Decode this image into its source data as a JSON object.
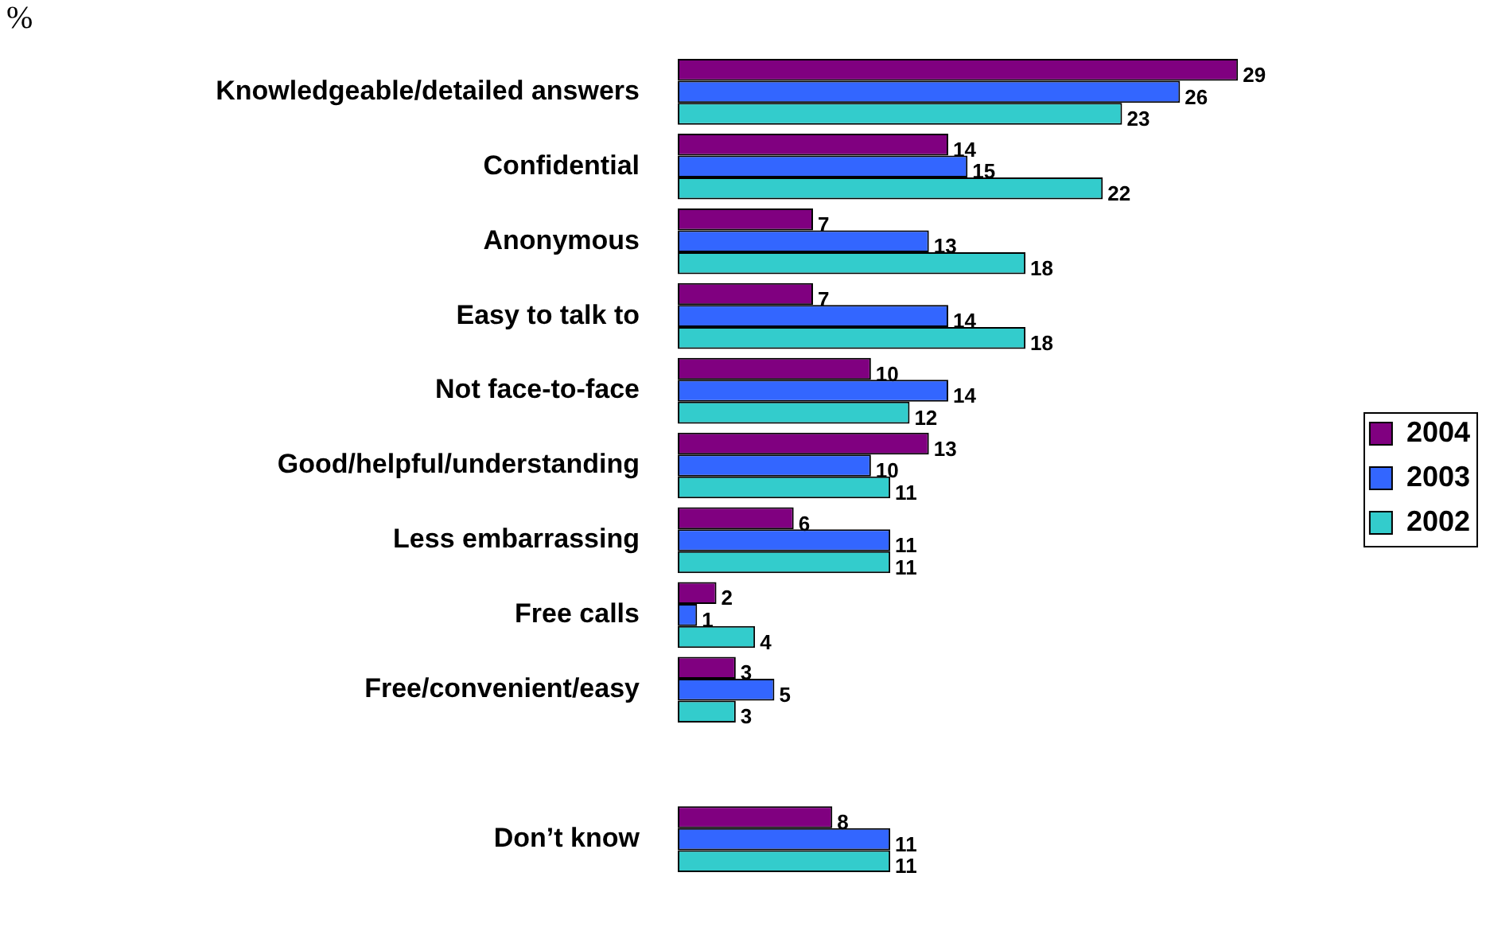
{
  "chart_data": {
    "type": "bar",
    "orientation": "horizontal",
    "categories": [
      "Knowledgeable/detailed answers",
      "Confidential",
      "Anonymous",
      "Easy to talk to",
      "Not face-to-face",
      "Good/helpful/understanding",
      "Less embarrassing",
      "Free calls",
      "Free/convenient/easy",
      null,
      "Don’t know"
    ],
    "series": [
      {
        "name": "2004",
        "color": "#800080",
        "values": [
          29,
          14,
          7,
          7,
          10,
          13,
          6,
          2,
          3,
          null,
          8
        ]
      },
      {
        "name": "2003",
        "color": "#3366ff",
        "values": [
          26,
          15,
          13,
          14,
          14,
          10,
          11,
          1,
          5,
          null,
          11
        ]
      },
      {
        "name": "2002",
        "color": "#33cccc",
        "values": [
          23,
          22,
          18,
          18,
          12,
          11,
          11,
          4,
          3,
          null,
          11
        ]
      }
    ],
    "tick_labels": "y",
    "grid": false,
    "legend": "right",
    "data_labels": true,
    "annotations": [
      "%"
    ]
  }
}
